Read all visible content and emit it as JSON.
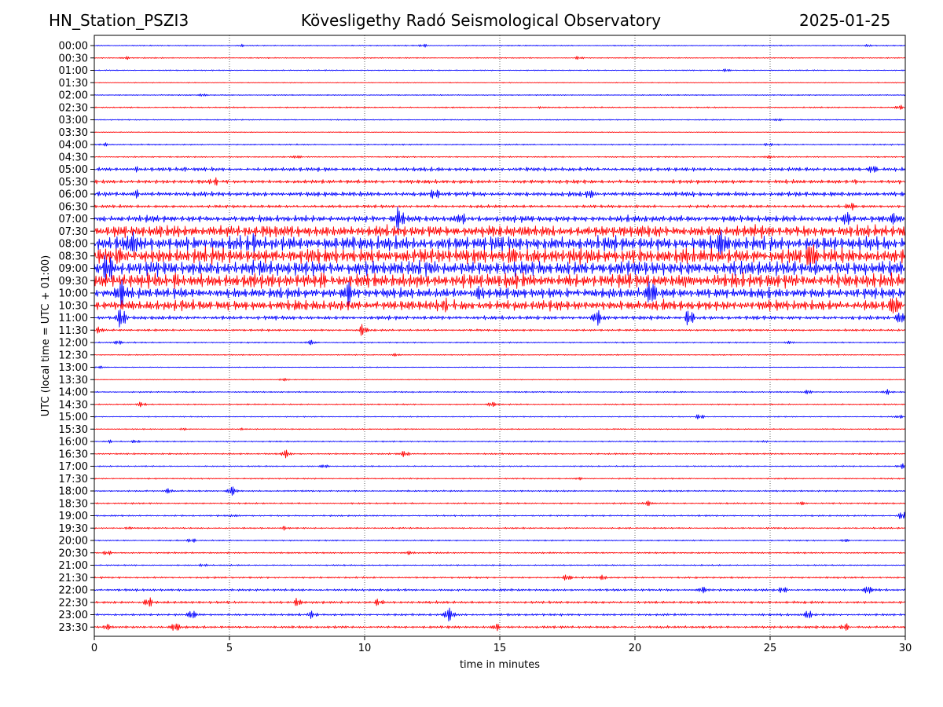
{
  "header": {
    "station": "HN_Station_PSZI3",
    "title": "Kövesligethy Radó Seismological Observatory",
    "date": "2025-01-25"
  },
  "chart_data": {
    "type": "line",
    "title": "Kövesligethy Radó Seismological Observatory",
    "xlabel": "time in minutes",
    "ylabel": "UTC (local time = UTC + 01:00)",
    "xlim": [
      0,
      30
    ],
    "x_ticks": [
      0,
      5,
      10,
      15,
      20,
      25,
      30
    ],
    "x_tick_labels": [
      "0",
      "5",
      "10",
      "15",
      "20",
      "25",
      "30"
    ],
    "grid": "vertical dotted lines at each x tick",
    "series_colors": [
      "#0000ff",
      "#ff0000"
    ],
    "rows": [
      {
        "label": "00:00",
        "amp": 0.04,
        "bursts": [
          [
            5.5,
            0.12
          ],
          [
            12.2,
            0.14
          ],
          [
            28.6,
            0.12
          ]
        ]
      },
      {
        "label": "00:30",
        "amp": 0.04,
        "bursts": [
          [
            1.2,
            0.1
          ],
          [
            17.9,
            0.12
          ]
        ]
      },
      {
        "label": "01:00",
        "amp": 0.04,
        "bursts": [
          [
            23.4,
            0.14
          ]
        ]
      },
      {
        "label": "01:30",
        "amp": 0.03,
        "bursts": []
      },
      {
        "label": "02:00",
        "amp": 0.04,
        "bursts": [
          [
            4.0,
            0.1
          ]
        ]
      },
      {
        "label": "02:30",
        "amp": 0.05,
        "bursts": [
          [
            16.5,
            0.1
          ],
          [
            29.8,
            0.2
          ]
        ]
      },
      {
        "label": "03:00",
        "amp": 0.04,
        "bursts": [
          [
            25.3,
            0.1
          ]
        ]
      },
      {
        "label": "03:30",
        "amp": 0.03,
        "bursts": []
      },
      {
        "label": "04:00",
        "amp": 0.05,
        "bursts": [
          [
            0.4,
            0.12
          ],
          [
            24.9,
            0.12
          ]
        ]
      },
      {
        "label": "04:30",
        "amp": 0.05,
        "bursts": [
          [
            7.5,
            0.1
          ],
          [
            25.0,
            0.12
          ]
        ]
      },
      {
        "label": "05:00",
        "amp": 0.15,
        "bursts": [
          [
            1.6,
            0.28
          ],
          [
            3.3,
            0.26
          ],
          [
            28.8,
            0.26
          ]
        ]
      },
      {
        "label": "05:30",
        "amp": 0.15,
        "bursts": [
          [
            4.5,
            0.22
          ],
          [
            28.2,
            0.24
          ]
        ]
      },
      {
        "label": "06:00",
        "amp": 0.18,
        "bursts": [
          [
            1.6,
            0.38
          ],
          [
            18.4,
            0.4
          ],
          [
            12.6,
            0.3
          ]
        ]
      },
      {
        "label": "06:30",
        "amp": 0.12,
        "bursts": [
          [
            28.0,
            0.22
          ]
        ]
      },
      {
        "label": "07:00",
        "amp": 0.25,
        "bursts": [
          [
            11.3,
            0.95
          ],
          [
            13.6,
            0.55
          ],
          [
            27.8,
            0.6
          ],
          [
            29.5,
            0.45
          ]
        ]
      },
      {
        "label": "07:30",
        "amp": 0.45,
        "bursts": [
          [
            6.7,
            0.6
          ],
          [
            15.7,
            0.55
          ]
        ]
      },
      {
        "label": "08:00",
        "amp": 0.55,
        "bursts": [
          [
            1.5,
            0.85
          ],
          [
            6.0,
            0.8
          ],
          [
            23.2,
            0.75
          ]
        ]
      },
      {
        "label": "08:30",
        "amp": 0.58,
        "bursts": [
          [
            1.0,
            0.8
          ],
          [
            15.5,
            0.75
          ],
          [
            26.5,
            0.75
          ]
        ]
      },
      {
        "label": "09:00",
        "amp": 0.55,
        "bursts": [
          [
            0.5,
            0.95
          ],
          [
            12.5,
            0.8
          ],
          [
            26.6,
            0.7
          ]
        ]
      },
      {
        "label": "09:30",
        "amp": 0.55,
        "bursts": [
          [
            3.0,
            0.8
          ],
          [
            8.5,
            0.75
          ],
          [
            22.0,
            0.7
          ]
        ]
      },
      {
        "label": "10:00",
        "amp": 0.4,
        "bursts": [
          [
            1.0,
            0.95
          ],
          [
            9.4,
            0.75
          ],
          [
            14.2,
            0.75
          ],
          [
            20.6,
            0.75
          ]
        ]
      },
      {
        "label": "10:30",
        "amp": 0.4,
        "bursts": [
          [
            13.0,
            0.7
          ],
          [
            29.6,
            0.6
          ]
        ]
      },
      {
        "label": "11:00",
        "amp": 0.15,
        "bursts": [
          [
            1.0,
            0.95
          ],
          [
            18.6,
            0.55
          ],
          [
            22.0,
            0.6
          ],
          [
            29.8,
            0.4
          ]
        ]
      },
      {
        "label": "11:30",
        "amp": 0.08,
        "bursts": [
          [
            0.2,
            0.3
          ],
          [
            9.9,
            0.45
          ]
        ]
      },
      {
        "label": "12:00",
        "amp": 0.05,
        "bursts": [
          [
            0.9,
            0.18
          ],
          [
            8.0,
            0.18
          ],
          [
            25.7,
            0.15
          ]
        ]
      },
      {
        "label": "12:30",
        "amp": 0.04,
        "bursts": [
          [
            11.1,
            0.12
          ]
        ]
      },
      {
        "label": "13:00",
        "amp": 0.03,
        "bursts": [
          [
            0.2,
            0.1
          ]
        ]
      },
      {
        "label": "13:30",
        "amp": 0.03,
        "bursts": [
          [
            7.0,
            0.14
          ]
        ]
      },
      {
        "label": "14:00",
        "amp": 0.05,
        "bursts": [
          [
            26.4,
            0.2
          ],
          [
            29.3,
            0.22
          ]
        ]
      },
      {
        "label": "14:30",
        "amp": 0.05,
        "bursts": [
          [
            1.7,
            0.22
          ],
          [
            14.7,
            0.2
          ]
        ]
      },
      {
        "label": "15:00",
        "amp": 0.04,
        "bursts": [
          [
            22.4,
            0.2
          ],
          [
            29.8,
            0.15
          ]
        ]
      },
      {
        "label": "15:30",
        "amp": 0.04,
        "bursts": [
          [
            3.3,
            0.12
          ],
          [
            5.5,
            0.12
          ]
        ]
      },
      {
        "label": "16:00",
        "amp": 0.05,
        "bursts": [
          [
            0.6,
            0.12
          ],
          [
            1.5,
            0.12
          ],
          [
            24.8,
            0.12
          ]
        ]
      },
      {
        "label": "16:30",
        "amp": 0.06,
        "bursts": [
          [
            7.1,
            0.35
          ],
          [
            11.5,
            0.25
          ]
        ]
      },
      {
        "label": "17:00",
        "amp": 0.05,
        "bursts": [
          [
            8.5,
            0.12
          ],
          [
            29.9,
            0.18
          ]
        ]
      },
      {
        "label": "17:30",
        "amp": 0.05,
        "bursts": [
          [
            18.0,
            0.12
          ]
        ]
      },
      {
        "label": "18:00",
        "amp": 0.06,
        "bursts": [
          [
            5.1,
            0.35
          ],
          [
            2.7,
            0.2
          ]
        ]
      },
      {
        "label": "18:30",
        "amp": 0.06,
        "bursts": [
          [
            20.5,
            0.18
          ],
          [
            26.2,
            0.15
          ]
        ]
      },
      {
        "label": "19:00",
        "amp": 0.06,
        "bursts": [
          [
            5.2,
            0.15
          ],
          [
            29.9,
            0.38
          ]
        ]
      },
      {
        "label": "19:30",
        "amp": 0.06,
        "bursts": [
          [
            1.3,
            0.15
          ],
          [
            7.0,
            0.18
          ]
        ]
      },
      {
        "label": "20:00",
        "amp": 0.05,
        "bursts": [
          [
            3.6,
            0.15
          ],
          [
            27.8,
            0.12
          ]
        ]
      },
      {
        "label": "20:30",
        "amp": 0.06,
        "bursts": [
          [
            0.5,
            0.18
          ],
          [
            11.7,
            0.15
          ]
        ]
      },
      {
        "label": "21:00",
        "amp": 0.05,
        "bursts": [
          [
            4.0,
            0.12
          ]
        ]
      },
      {
        "label": "21:30",
        "amp": 0.07,
        "bursts": [
          [
            17.5,
            0.22
          ],
          [
            18.8,
            0.25
          ]
        ]
      },
      {
        "label": "22:00",
        "amp": 0.09,
        "bursts": [
          [
            25.5,
            0.25
          ],
          [
            28.6,
            0.3
          ],
          [
            22.5,
            0.22
          ]
        ]
      },
      {
        "label": "22:30",
        "amp": 0.1,
        "bursts": [
          [
            2.0,
            0.38
          ],
          [
            7.5,
            0.38
          ],
          [
            10.5,
            0.22
          ]
        ]
      },
      {
        "label": "23:00",
        "amp": 0.09,
        "bursts": [
          [
            3.6,
            0.3
          ],
          [
            8.0,
            0.3
          ],
          [
            13.1,
            0.55
          ],
          [
            26.4,
            0.4
          ]
        ]
      },
      {
        "label": "23:30",
        "amp": 0.1,
        "bursts": [
          [
            0.5,
            0.3
          ],
          [
            3.0,
            0.3
          ],
          [
            14.9,
            0.25
          ],
          [
            27.8,
            0.28
          ]
        ]
      }
    ]
  }
}
